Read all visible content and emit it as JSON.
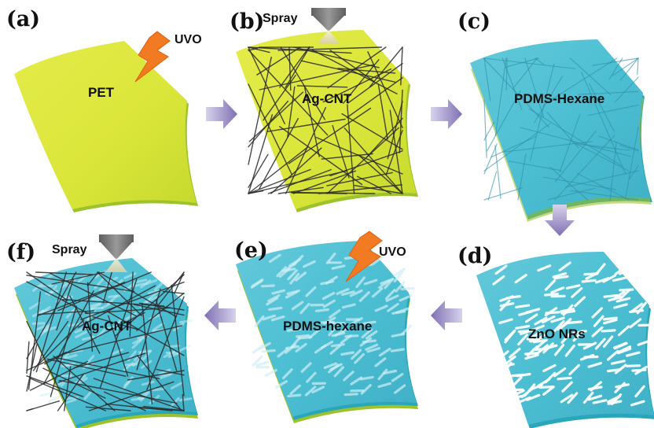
{
  "figure": {
    "panels": [
      {
        "id": "a",
        "label": "(a)",
        "center_text": "PET",
        "tool_text": "UVO",
        "tool": "uvo-lamp-icon",
        "film": "pet-film",
        "overlay": "none"
      },
      {
        "id": "b",
        "label": "(b)",
        "center_text": "Ag-CNT",
        "tool_text": "Spray",
        "tool": "spray-nozzle-icon",
        "film": "pet-film",
        "overlay": "nanowire-network"
      },
      {
        "id": "c",
        "label": "(c)",
        "center_text": "PDMS-Hexane",
        "tool_text": "",
        "tool": "none",
        "film": "pdms-film",
        "overlay": "embedded-nanowires"
      },
      {
        "id": "d",
        "label": "(d)",
        "center_text": "ZnO NRs",
        "tool_text": "",
        "tool": "none",
        "film": "pdms-film",
        "overlay": "nanorods"
      },
      {
        "id": "e",
        "label": "(e)",
        "center_text": "PDMS-hexane",
        "tool_text": "UVO",
        "tool": "uvo-lamp-icon",
        "film": "pdms-film",
        "overlay": "coated-nanorods"
      },
      {
        "id": "f",
        "label": "(f)",
        "center_text": "Ag-CNT",
        "tool_text": "Spray",
        "tool": "spray-nozzle-icon",
        "film": "pdms-film",
        "overlay": "top-nanowire-network"
      }
    ],
    "flow": [
      "a",
      "b",
      "c",
      "d",
      "e",
      "f"
    ],
    "colors": {
      "pet_face": "#dbe63a",
      "pet_edge": "#9cc22c",
      "pdms_face": "#4dbfd3",
      "pdms_edge": "#2aa6ba",
      "arrow": "#8a7ab8",
      "uvo": "#f27a22",
      "nanowire": "#2a2a2a",
      "nanorod": "#ffffff",
      "nozzle": "#7c7c7c"
    }
  }
}
